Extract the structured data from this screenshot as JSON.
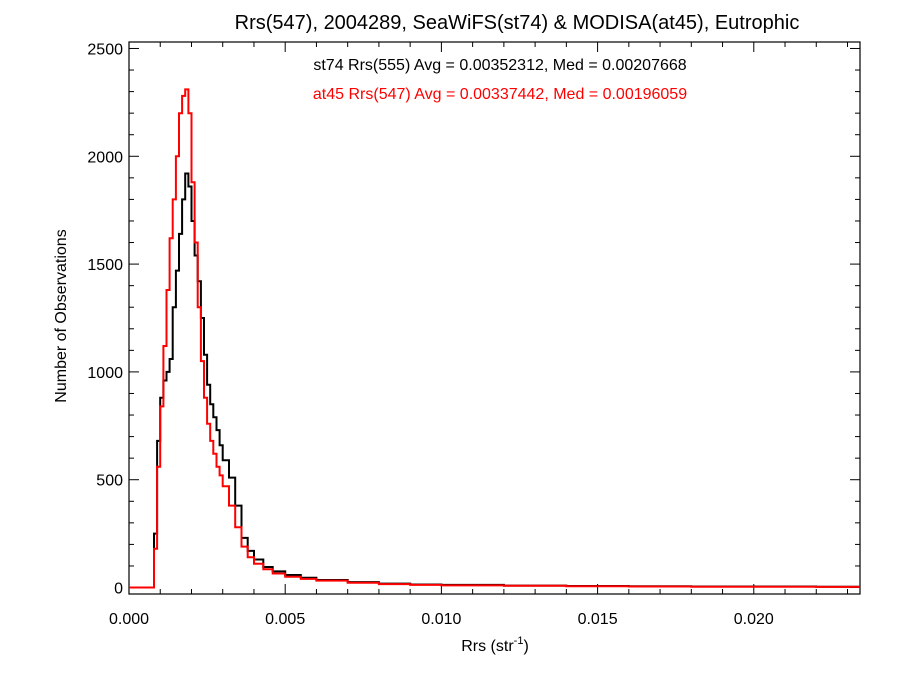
{
  "chart_data": {
    "type": "line",
    "title": "Rrs(547), 2004289, SeaWiFS(st74) & MODISA(at45), Eutrophic",
    "xlabel": "Rrs (str",
    "xlabel_superscript": "-1",
    "xlabel_suffix": ")",
    "ylabel": "Number of Observations",
    "xlim": [
      0.0,
      0.0234
    ],
    "ylim": [
      -30,
      2530
    ],
    "x_ticks": [
      0.0,
      0.005,
      0.01,
      0.015,
      0.02
    ],
    "x_tick_labels": [
      "0.000",
      "0.005",
      "0.010",
      "0.015",
      "0.020"
    ],
    "y_ticks": [
      0,
      500,
      1000,
      1500,
      2000,
      2500
    ],
    "y_tick_labels": [
      "0",
      "500",
      "1000",
      "1500",
      "2000",
      "2500"
    ],
    "grid": false,
    "legend_placement": "top-center",
    "annotations": [
      {
        "text": "st74 Rrs(555) Avg = 0.00352312, Med = 0.00207668",
        "color": "#000000"
      },
      {
        "text": "at45 Rrs(547) Avg = 0.00337442, Med = 0.00196059",
        "color": "#ff0000"
      }
    ],
    "series": [
      {
        "color": "#000000",
        "style": "step",
        "x": [
          0.0,
          0.0007,
          0.0008,
          0.0009,
          0.001,
          0.0011,
          0.0012,
          0.0013,
          0.0014,
          0.0015,
          0.0016,
          0.0017,
          0.0018,
          0.0019,
          0.002,
          0.0021,
          0.0022,
          0.0023,
          0.0024,
          0.0025,
          0.0026,
          0.0027,
          0.0028,
          0.0029,
          0.003,
          0.0032,
          0.0034,
          0.0036,
          0.0038,
          0.004,
          0.0043,
          0.0046,
          0.005,
          0.0055,
          0.006,
          0.007,
          0.008,
          0.009,
          0.01,
          0.012,
          0.014,
          0.016,
          0.018,
          0.02,
          0.022,
          0.0234
        ],
        "y": [
          0,
          0,
          250,
          680,
          880,
          960,
          1000,
          1060,
          1300,
          1470,
          1640,
          1800,
          1920,
          1860,
          1700,
          1540,
          1420,
          1250,
          1080,
          940,
          850,
          790,
          730,
          660,
          590,
          510,
          380,
          230,
          170,
          130,
          95,
          75,
          58,
          45,
          35,
          25,
          18,
          14,
          12,
          9,
          7,
          6,
          5,
          5,
          4,
          4
        ]
      },
      {
        "color": "#ff0000",
        "style": "step",
        "x": [
          0.0,
          0.0007,
          0.0008,
          0.0009,
          0.001,
          0.0011,
          0.0012,
          0.0013,
          0.0014,
          0.0015,
          0.0016,
          0.0017,
          0.0018,
          0.0019,
          0.002,
          0.0021,
          0.0022,
          0.0023,
          0.0024,
          0.0025,
          0.0026,
          0.0027,
          0.0028,
          0.0029,
          0.003,
          0.0032,
          0.0034,
          0.0036,
          0.0038,
          0.004,
          0.0043,
          0.0046,
          0.005,
          0.0055,
          0.006,
          0.007,
          0.008,
          0.009,
          0.01,
          0.012,
          0.014,
          0.016,
          0.018,
          0.02,
          0.022,
          0.0234
        ],
        "y": [
          0,
          0,
          180,
          560,
          840,
          1120,
          1380,
          1620,
          1800,
          2000,
          2200,
          2280,
          2310,
          2200,
          1880,
          1600,
          1300,
          1050,
          880,
          760,
          680,
          620,
          560,
          520,
          470,
          380,
          280,
          190,
          140,
          110,
          85,
          65,
          50,
          40,
          32,
          22,
          16,
          12,
          10,
          8,
          6,
          5,
          4,
          4,
          3,
          3
        ]
      }
    ]
  }
}
